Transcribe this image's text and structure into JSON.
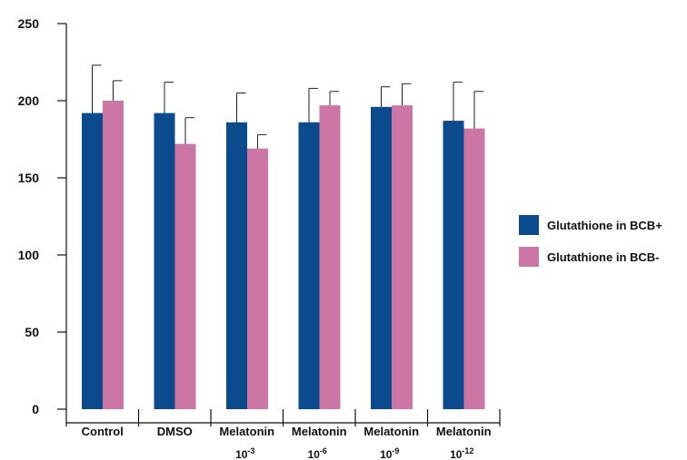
{
  "chart_data": {
    "type": "bar",
    "title": "",
    "xlabel": "",
    "ylabel": "",
    "ylim": [
      0,
      250
    ],
    "yticks": [
      0,
      50,
      100,
      150,
      200,
      250
    ],
    "categories": [
      {
        "label": "Control",
        "exponent": ""
      },
      {
        "label": "DMSO",
        "exponent": ""
      },
      {
        "label": "Melatonin",
        "base": "10",
        "exponent": "-3"
      },
      {
        "label": "Melatonin",
        "base": "10",
        "exponent": "-6"
      },
      {
        "label": "Melatonin",
        "base": "10",
        "exponent": "-9"
      },
      {
        "label": "Melatonin",
        "base": "10",
        "exponent": "-12"
      }
    ],
    "series": [
      {
        "name": "Glutathione in BCB+",
        "color": "#0b4a8c",
        "values": [
          192,
          192,
          186,
          186,
          196,
          187
        ],
        "errors": [
          31,
          20,
          19,
          22,
          13,
          25
        ]
      },
      {
        "name": "Glutathione in BCB-",
        "color": "#cc76a6",
        "values": [
          200,
          172,
          169,
          197,
          197,
          182
        ],
        "errors": [
          13,
          17,
          9,
          9,
          14,
          24
        ]
      }
    ],
    "grid": false,
    "legend_position": "right"
  }
}
